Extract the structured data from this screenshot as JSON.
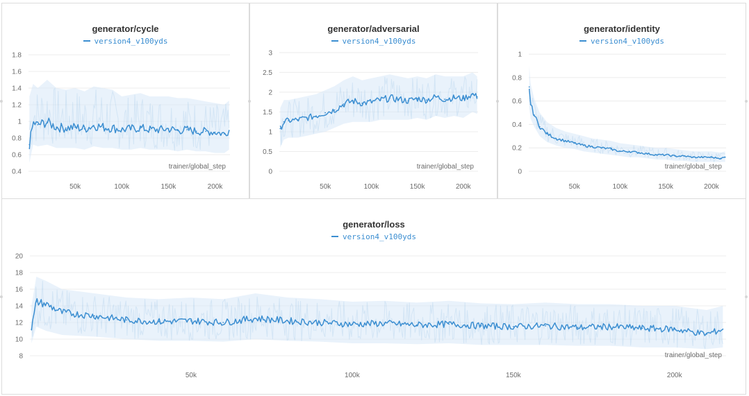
{
  "colors": {
    "series": "#3b8ed1",
    "band": "#dbeaf8",
    "grid": "#ececec"
  },
  "chart_data": [
    {
      "type": "line",
      "title": "generator/cycle",
      "xlabel": "trainer/global_step",
      "xlim": [
        0,
        216000
      ],
      "ylim": [
        0.4,
        1.85
      ],
      "xticks": [
        50000,
        100000,
        150000,
        200000
      ],
      "xticklabels": [
        "50k",
        "100k",
        "150k",
        "200k"
      ],
      "yticks": [
        0.4,
        0.6,
        0.8,
        1,
        1.2,
        1.4,
        1.6,
        1.8
      ],
      "yticklabels": [
        "0.4",
        "0.6",
        "0.8",
        "1",
        "1.2",
        "1.4",
        "1.6",
        "1.8"
      ],
      "series": [
        {
          "name": "version4_v100yds",
          "x": [
            1000,
            5000,
            10000,
            20000,
            30000,
            40000,
            50000,
            60000,
            70000,
            80000,
            90000,
            100000,
            110000,
            120000,
            130000,
            140000,
            150000,
            160000,
            170000,
            180000,
            190000,
            200000,
            210000,
            215000
          ],
          "y": [
            0.72,
            0.98,
            0.96,
            0.99,
            0.93,
            0.92,
            0.93,
            0.91,
            0.95,
            0.93,
            0.92,
            0.9,
            0.91,
            0.92,
            0.9,
            0.9,
            0.91,
            0.89,
            0.9,
            0.88,
            0.88,
            0.87,
            0.85,
            0.89
          ],
          "band_low": [
            0.5,
            0.72,
            0.7,
            0.72,
            0.68,
            0.68,
            0.68,
            0.66,
            0.7,
            0.68,
            0.68,
            0.66,
            0.66,
            0.68,
            0.66,
            0.66,
            0.66,
            0.64,
            0.66,
            0.64,
            0.64,
            0.62,
            0.62,
            0.66
          ],
          "band_high": [
            1.3,
            1.45,
            1.4,
            1.5,
            1.4,
            1.38,
            1.4,
            1.36,
            1.42,
            1.4,
            1.38,
            1.3,
            1.32,
            1.34,
            1.3,
            1.3,
            1.3,
            1.28,
            1.28,
            1.26,
            1.24,
            1.22,
            1.2,
            1.25
          ]
        }
      ]
    },
    {
      "type": "line",
      "title": "generator/adversarial",
      "xlabel": "trainer/global_step",
      "xlim": [
        0,
        216000
      ],
      "ylim": [
        0,
        3.05
      ],
      "xticks": [
        50000,
        100000,
        150000,
        200000
      ],
      "xticklabels": [
        "50k",
        "100k",
        "150k",
        "200k"
      ],
      "yticks": [
        0,
        0.5,
        1,
        1.5,
        2,
        2.5,
        3
      ],
      "yticklabels": [
        "0",
        "0.5",
        "1",
        "1.5",
        "2",
        "2.5",
        "3"
      ],
      "series": [
        {
          "name": "version4_v100yds",
          "x": [
            1000,
            5000,
            10000,
            20000,
            30000,
            40000,
            50000,
            60000,
            70000,
            80000,
            90000,
            100000,
            110000,
            120000,
            130000,
            140000,
            150000,
            160000,
            170000,
            180000,
            190000,
            200000,
            210000,
            215000
          ],
          "y": [
            1.08,
            1.25,
            1.28,
            1.3,
            1.35,
            1.4,
            1.48,
            1.55,
            1.7,
            1.78,
            1.72,
            1.75,
            1.8,
            1.85,
            1.82,
            1.78,
            1.84,
            1.8,
            1.88,
            1.82,
            1.86,
            1.84,
            1.95,
            1.88
          ],
          "band_low": [
            0.6,
            0.8,
            0.85,
            0.85,
            0.9,
            0.95,
            1.0,
            1.1,
            1.2,
            1.25,
            1.25,
            1.25,
            1.3,
            1.3,
            1.3,
            1.3,
            1.35,
            1.3,
            1.4,
            1.35,
            1.4,
            1.35,
            1.5,
            1.45
          ],
          "band_high": [
            1.6,
            1.8,
            1.8,
            1.85,
            1.9,
            1.95,
            2.05,
            2.15,
            2.3,
            2.4,
            2.3,
            2.35,
            2.4,
            2.45,
            2.4,
            2.35,
            2.4,
            2.35,
            2.45,
            2.4,
            2.4,
            2.4,
            2.5,
            2.4
          ]
        }
      ]
    },
    {
      "type": "line",
      "title": "generator/identity",
      "xlabel": "trainer/global_step",
      "xlim": [
        0,
        216000
      ],
      "ylim": [
        0,
        1.03
      ],
      "xticks": [
        50000,
        100000,
        150000,
        200000
      ],
      "xticklabels": [
        "50k",
        "100k",
        "150k",
        "200k"
      ],
      "yticks": [
        0,
        0.2,
        0.4,
        0.6,
        0.8,
        1
      ],
      "yticklabels": [
        "0",
        "0.2",
        "0.4",
        "0.6",
        "0.8",
        "1"
      ],
      "series": [
        {
          "name": "version4_v100yds",
          "x": [
            500,
            2000,
            6000,
            12000,
            20000,
            30000,
            40000,
            50000,
            60000,
            70000,
            80000,
            90000,
            100000,
            110000,
            120000,
            130000,
            140000,
            150000,
            160000,
            170000,
            180000,
            190000,
            200000,
            210000,
            215000
          ],
          "y": [
            0.72,
            0.57,
            0.48,
            0.38,
            0.32,
            0.28,
            0.26,
            0.24,
            0.22,
            0.21,
            0.2,
            0.19,
            0.17,
            0.17,
            0.16,
            0.15,
            0.14,
            0.14,
            0.13,
            0.13,
            0.12,
            0.12,
            0.12,
            0.11,
            0.12
          ],
          "band_low": [
            0.55,
            0.45,
            0.38,
            0.3,
            0.25,
            0.22,
            0.2,
            0.19,
            0.17,
            0.16,
            0.15,
            0.14,
            0.13,
            0.12,
            0.12,
            0.11,
            0.1,
            0.1,
            0.09,
            0.09,
            0.08,
            0.08,
            0.08,
            0.08,
            0.08
          ],
          "band_high": [
            0.9,
            0.75,
            0.62,
            0.5,
            0.42,
            0.37,
            0.34,
            0.32,
            0.3,
            0.28,
            0.27,
            0.26,
            0.24,
            0.23,
            0.22,
            0.21,
            0.2,
            0.2,
            0.19,
            0.18,
            0.17,
            0.17,
            0.17,
            0.16,
            0.17
          ]
        }
      ]
    },
    {
      "type": "line",
      "title": "generator/loss",
      "xlabel": "trainer/global_step",
      "xlim": [
        0,
        216000
      ],
      "ylim": [
        7.5,
        21
      ],
      "xticks": [
        50000,
        100000,
        150000,
        200000
      ],
      "xticklabels": [
        "50k",
        "100k",
        "150k",
        "200k"
      ],
      "yticks": [
        8,
        10,
        12,
        14,
        16,
        18,
        20
      ],
      "yticklabels": [
        "8",
        "10",
        "12",
        "14",
        "16",
        "18",
        "20"
      ],
      "series": [
        {
          "name": "version4_v100yds",
          "x": [
            500,
            2000,
            5000,
            10000,
            20000,
            30000,
            40000,
            50000,
            60000,
            70000,
            80000,
            90000,
            100000,
            110000,
            120000,
            130000,
            140000,
            150000,
            160000,
            170000,
            180000,
            190000,
            200000,
            210000,
            215000
          ],
          "y": [
            11.2,
            14.5,
            14.2,
            13.2,
            12.8,
            12.3,
            12.1,
            12.2,
            12.0,
            12.5,
            12.2,
            12.0,
            11.8,
            11.9,
            11.7,
            11.8,
            11.6,
            11.5,
            11.6,
            11.4,
            11.5,
            11.3,
            11.2,
            10.6,
            11.2
          ],
          "band_low": [
            9.5,
            11.5,
            11.0,
            10.5,
            10.3,
            10.0,
            9.8,
            9.8,
            9.7,
            10.0,
            9.8,
            9.7,
            9.5,
            9.5,
            9.4,
            9.5,
            9.3,
            9.3,
            9.3,
            9.2,
            9.2,
            9.0,
            9.0,
            8.8,
            9.0
          ],
          "band_high": [
            14.0,
            17.5,
            17.0,
            16.0,
            15.5,
            15.0,
            14.8,
            15.0,
            14.8,
            15.5,
            15.0,
            14.8,
            14.5,
            14.6,
            14.4,
            14.6,
            14.3,
            14.2,
            14.4,
            14.2,
            14.2,
            14.0,
            14.0,
            13.5,
            14.0
          ]
        }
      ]
    }
  ]
}
